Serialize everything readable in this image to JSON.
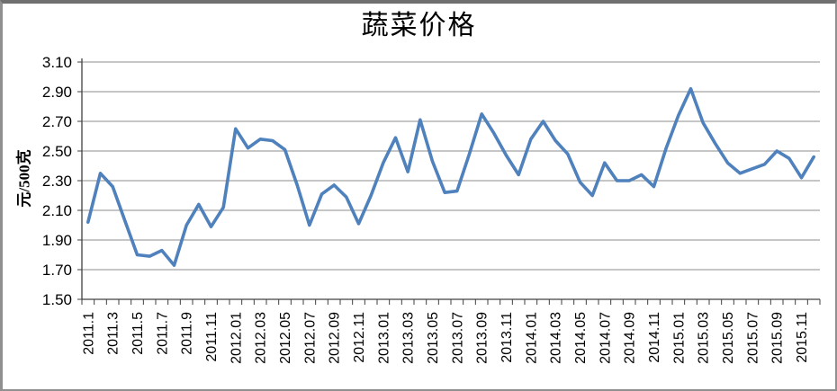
{
  "window": {
    "background": "#ffffff",
    "frame_border_color": "#6f6f6f"
  },
  "chart_data": {
    "type": "line",
    "title": "蔬菜价格",
    "xlabel": "",
    "ylabel": "元/500克",
    "ylim": [
      1.5,
      3.1
    ],
    "ytick_step": 0.2,
    "ytick_labels": [
      "3.10",
      "2.90",
      "2.70",
      "2.50",
      "2.30",
      "2.10",
      "1.90",
      "1.70",
      "1.50"
    ],
    "grid": "horizontal",
    "legend_position": "none",
    "line_color": "#4F81BD",
    "gridline_color": "#8c8c8c",
    "axis_color": "#404040",
    "x_label_every": 2,
    "months": [
      "2011.1",
      "2011.2",
      "2011.3",
      "2011.4",
      "2011.5",
      "2011.6",
      "2011.7",
      "2011.8",
      "2011.9",
      "2011.10",
      "2011.11",
      "2011.12",
      "2012.01",
      "2012.02",
      "2012.03",
      "2012.04",
      "2012.05",
      "2012.06",
      "2012.07",
      "2012.08",
      "2012.09",
      "2012.10",
      "2012.11",
      "2012.12",
      "2013.01",
      "2013.02",
      "2013.03",
      "2013.04",
      "2013.05",
      "2013.06",
      "2013.07",
      "2013.08",
      "2013.09",
      "2013.10",
      "2013.11",
      "2013.12",
      "2014.01",
      "2014.02",
      "2014.03",
      "2014.04",
      "2014.05",
      "2014.06",
      "2014.07",
      "2014.08",
      "2014.09",
      "2014.10",
      "2014.11",
      "2014.12",
      "2015.01",
      "2015.02",
      "2015.03",
      "2015.04",
      "2015.05",
      "2015.06",
      "2015.07",
      "2015.08",
      "2015.09",
      "2015.10",
      "2015.11",
      "2015.12"
    ],
    "values": [
      2.02,
      2.35,
      2.26,
      2.03,
      1.8,
      1.79,
      1.83,
      1.73,
      2.0,
      2.14,
      1.99,
      2.12,
      2.65,
      2.52,
      2.58,
      2.57,
      2.51,
      2.27,
      2.0,
      2.21,
      2.27,
      2.19,
      2.01,
      2.2,
      2.42,
      2.59,
      2.36,
      2.71,
      2.43,
      2.22,
      2.23,
      2.48,
      2.75,
      2.62,
      2.47,
      2.34,
      2.58,
      2.7,
      2.57,
      2.48,
      2.29,
      2.2,
      2.42,
      2.3,
      2.3,
      2.34,
      2.26,
      2.52,
      2.74,
      2.92,
      2.69,
      2.55,
      2.42,
      2.35,
      2.38,
      2.41,
      2.5,
      2.45,
      2.32,
      2.46
    ]
  }
}
